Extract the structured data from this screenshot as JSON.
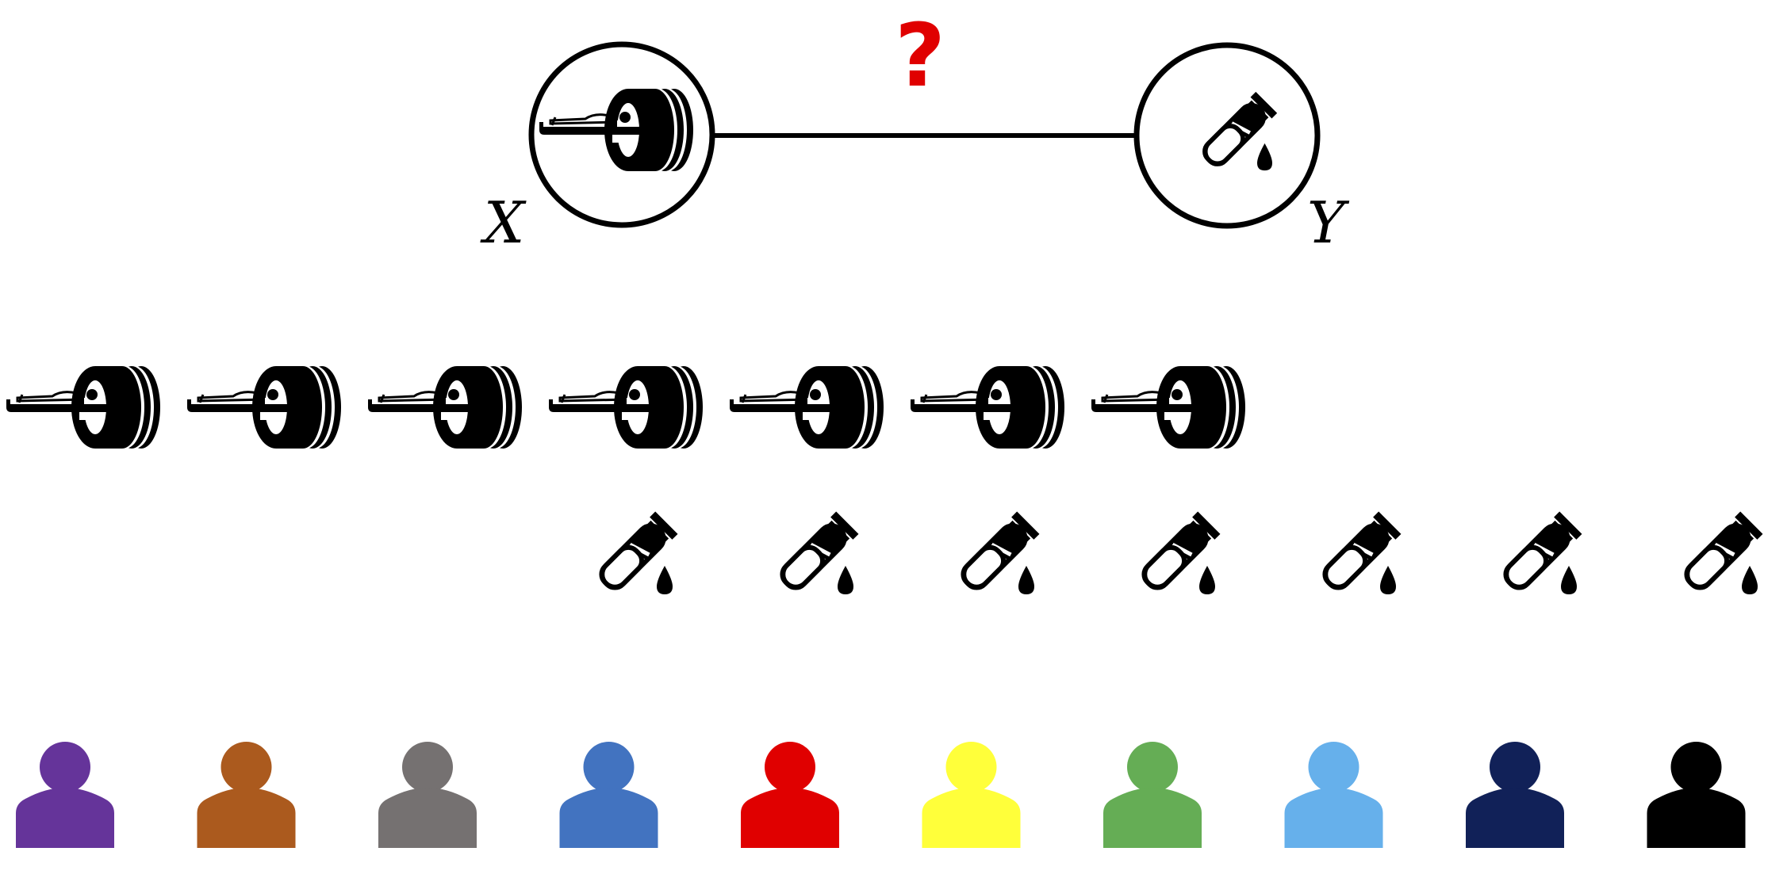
{
  "graph": {
    "node_x": {
      "label": "X",
      "icon": "mri-scanner-icon"
    },
    "node_y": {
      "label": "Y",
      "icon": "blood-test-tube-icon"
    },
    "edge_label": "?",
    "edge_label_color": "#e00000"
  },
  "rows": {
    "mri_scans": {
      "count": 7,
      "icon": "mri-scanner-icon"
    },
    "blood_tests": {
      "count": 7,
      "icon": "blood-test-tube-icon"
    }
  },
  "persons": {
    "icon": "person-icon",
    "colors": [
      "#65349a",
      "#ab5a1e",
      "#757171",
      "#4273c0",
      "#e00000",
      "#ffff3a",
      "#65ad55",
      "#66b0eb",
      "#112158",
      "#000000"
    ]
  }
}
